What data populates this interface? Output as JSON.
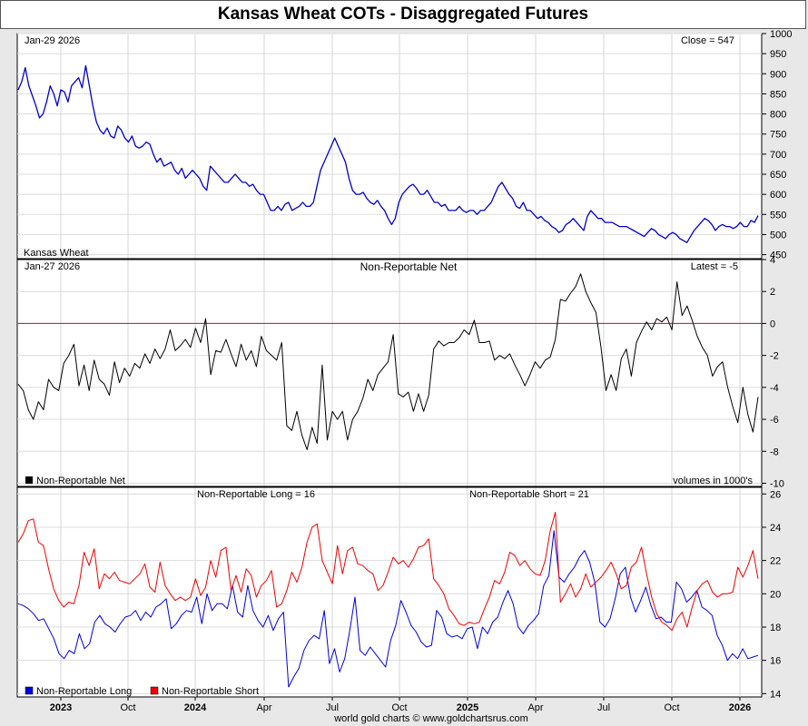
{
  "title": "Kansas Wheat COTs - Disaggregated Futures",
  "footer": "world gold charts © www.goldchartsrus.com",
  "colors": {
    "price": "#0000cc",
    "net": "#000000",
    "zero": "#cc0066",
    "long": "#0000dd",
    "short": "#ee0000"
  },
  "x_axis": {
    "labels": [
      "2023",
      "Oct",
      "2024",
      "Apr",
      "Jul",
      "Oct",
      "2025",
      "Apr",
      "Jul",
      "Oct",
      "2026"
    ],
    "bold": [
      true,
      false,
      true,
      false,
      false,
      false,
      true,
      false,
      false,
      false,
      true
    ]
  },
  "chart_data": [
    {
      "type": "line",
      "panel": "price",
      "date_label": "Jan-29  2026",
      "readout": "Close = 547",
      "series_label": "Kansas Wheat",
      "ylim": [
        440,
        1000
      ],
      "yticks": [
        1000,
        950,
        900,
        850,
        800,
        750,
        700,
        650,
        600,
        550,
        500,
        450
      ],
      "series": [
        {
          "name": "Kansas Wheat",
          "values": [
            860,
            880,
            915,
            870,
            845,
            820,
            790,
            800,
            830,
            870,
            850,
            820,
            860,
            855,
            830,
            870,
            880,
            890,
            865,
            920,
            870,
            820,
            780,
            760,
            750,
            765,
            745,
            740,
            770,
            760,
            740,
            730,
            745,
            720,
            715,
            720,
            730,
            725,
            700,
            680,
            690,
            670,
            675,
            680,
            660,
            650,
            665,
            640,
            650,
            660,
            650,
            640,
            620,
            610,
            670,
            660,
            650,
            640,
            630,
            630,
            640,
            650,
            640,
            630,
            630,
            620,
            625,
            610,
            600,
            600,
            580,
            560,
            560,
            570,
            560,
            575,
            580,
            560,
            565,
            570,
            580,
            570,
            570,
            580,
            620,
            660,
            680,
            700,
            720,
            740,
            720,
            700,
            680,
            640,
            610,
            600,
            600,
            605,
            590,
            580,
            575,
            585,
            570,
            560,
            540,
            525,
            540,
            580,
            600,
            610,
            620,
            625,
            615,
            600,
            600,
            610,
            595,
            580,
            580,
            570,
            575,
            560,
            560,
            560,
            570,
            560,
            555,
            560,
            560,
            550,
            560,
            560,
            570,
            580,
            600,
            620,
            630,
            615,
            600,
            590,
            570,
            565,
            580,
            560,
            560,
            550,
            540,
            545,
            535,
            530,
            520,
            515,
            505,
            510,
            525,
            530,
            540,
            530,
            520,
            510,
            545,
            560,
            550,
            540,
            540,
            530,
            530,
            530,
            525,
            520,
            520,
            520,
            515,
            510,
            505,
            500,
            495,
            505,
            515,
            510,
            500,
            495,
            490,
            500,
            505,
            500,
            490,
            485,
            480,
            495,
            510,
            520,
            530,
            540,
            535,
            525,
            510,
            520,
            525,
            520,
            520,
            515,
            520,
            530,
            520,
            520,
            535,
            530,
            547
          ]
        }
      ]
    },
    {
      "type": "line",
      "panel": "net",
      "title": "Non-Reportable Net",
      "date_label": "Jan-27  2026",
      "readout": "Latest = -5",
      "legend": "Non-Reportable Net",
      "note": "volumes in 1000's",
      "ylim": [
        -10.2,
        4
      ],
      "yticks": [
        4,
        2,
        0,
        -2,
        -4,
        -6,
        -8,
        -10
      ],
      "series": [
        {
          "name": "Non-Reportable Net",
          "values": [
            -3.8,
            -4.2,
            -5.4,
            -6.0,
            -4.9,
            -5.4,
            -3.5,
            -4.0,
            -4.2,
            -2.5,
            -2.0,
            -1.3,
            -3.9,
            -2.6,
            -4.2,
            -2.3,
            -3.5,
            -3.8,
            -4.5,
            -2.4,
            -3.7,
            -2.8,
            -3.3,
            -2.5,
            -2.8,
            -1.9,
            -2.5,
            -1.6,
            -2.2,
            -1.6,
            -0.4,
            -1.7,
            -1.4,
            -1.0,
            -1.5,
            -0.3,
            -1.2,
            0.3,
            -3.2,
            -1.7,
            -1.8,
            -1.0,
            -1.9,
            -2.7,
            -1.3,
            -2.3,
            -1.7,
            -2.7,
            -0.8,
            -1.7,
            -2.0,
            -2.3,
            -1.2,
            -6.4,
            -6.7,
            -5.5,
            -7.0,
            -7.9,
            -6.5,
            -7.5,
            -2.6,
            -7.3,
            -5.5,
            -6.0,
            -5.5,
            -7.3,
            -6.0,
            -5.5,
            -4.7,
            -3.5,
            -4.2,
            -3.2,
            -2.8,
            -2.4,
            -0.7,
            -4.4,
            -4.6,
            -4.3,
            -5.5,
            -4.4,
            -5.5,
            -4.5,
            -1.6,
            -1.1,
            -1.4,
            -1.2,
            -1.2,
            -0.9,
            -0.4,
            -0.7,
            0.2,
            -1.2,
            -1.2,
            -1.1,
            -2.3,
            -2.0,
            -2.2,
            -1.9,
            -2.6,
            -3.2,
            -3.9,
            -3.2,
            -2.4,
            -2.8,
            -2.3,
            -2.1,
            -1.0,
            1.5,
            1.4,
            1.9,
            2.3,
            3.1,
            2.0,
            1.3,
            0.7,
            -1.5,
            -4.2,
            -3.2,
            -4.2,
            -2.2,
            -1.6,
            -3.3,
            -1.2,
            -0.5,
            0.1,
            -0.4,
            0.3,
            0.1,
            0.4,
            -0.4,
            2.6,
            0.5,
            1.1,
            0.2,
            -0.8,
            -1.5,
            -2.0,
            -3.3,
            -2.7,
            -2.4,
            -4.0,
            -5.2,
            -6.2,
            -4.0,
            -5.7,
            -6.8,
            -4.6
          ]
        }
      ]
    },
    {
      "type": "line",
      "panel": "long_short",
      "long_readout": "Non-Reportable Long = 16",
      "short_readout": "Non-Reportable Short = 21",
      "ylim": [
        13.8,
        26.4
      ],
      "yticks": [
        26,
        24,
        22,
        20,
        18,
        16,
        14
      ],
      "series": [
        {
          "name": "Non-Reportable Long",
          "values": [
            19.4,
            19.3,
            19.1,
            18.8,
            18.4,
            18.5,
            17.9,
            17.3,
            16.4,
            16.1,
            16.6,
            16.4,
            17.6,
            16.7,
            17.0,
            18.3,
            18.7,
            18.2,
            18.0,
            17.7,
            18.2,
            18.6,
            18.7,
            19.0,
            18.4,
            18.9,
            18.6,
            19.2,
            19.4,
            19.7,
            17.9,
            18.2,
            18.7,
            19.0,
            18.9,
            19.8,
            18.2,
            20.0,
            19.0,
            19.4,
            19.4,
            19.1,
            20.5,
            18.9,
            18.6,
            20.5,
            19.0,
            18.4,
            18.0,
            18.7,
            17.8,
            18.5,
            18.9,
            14.4,
            15.0,
            15.5,
            16.6,
            17.2,
            17.5,
            17.3,
            19.0,
            15.8,
            16.7,
            15.3,
            16.1,
            17.8,
            19.8,
            16.6,
            16.3,
            16.8,
            16.4,
            16.0,
            15.6,
            17.2,
            18.1,
            19.6,
            18.9,
            18.1,
            17.7,
            17.1,
            16.8,
            16.9,
            19.0,
            18.6,
            17.6,
            17.4,
            17.5,
            17.3,
            17.9,
            18.0,
            16.7,
            18.0,
            17.6,
            18.3,
            18.6,
            19.5,
            20.2,
            19.4,
            18.0,
            17.6,
            18.1,
            18.4,
            18.8,
            20.5,
            21.1,
            23.8,
            21.0,
            20.7,
            21.2,
            21.6,
            22.2,
            22.6,
            21.9,
            20.7,
            18.3,
            18.0,
            18.5,
            19.7,
            21.2,
            21.6,
            19.8,
            18.9,
            19.6,
            20.4,
            19.3,
            18.5,
            18.6,
            18.3,
            18.3,
            20.7,
            20.3,
            19.5,
            19.8,
            20.2,
            19.2,
            19.0,
            18.7,
            17.5,
            16.9,
            16.0,
            16.4,
            16.1,
            16.7,
            16.1,
            16.2,
            16.3
          ]
        },
        {
          "name": "Non-Reportable Short",
          "values": [
            23.1,
            23.6,
            24.4,
            24.5,
            23.1,
            22.9,
            21.5,
            20.3,
            19.6,
            19.2,
            19.5,
            19.4,
            20.5,
            22.5,
            21.7,
            22.7,
            20.3,
            21.2,
            20.9,
            21.3,
            20.8,
            20.7,
            20.6,
            20.9,
            21.2,
            21.8,
            20.4,
            20.1,
            21.9,
            20.5,
            20.0,
            19.6,
            19.8,
            19.6,
            19.8,
            20.9,
            19.9,
            20.4,
            22.0,
            21.0,
            22.6,
            22.8,
            20.2,
            21.1,
            20.1,
            21.5,
            21.1,
            19.8,
            20.5,
            20.8,
            21.4,
            19.2,
            19.4,
            20.2,
            21.3,
            20.7,
            21.6,
            23.1,
            24.0,
            24.2,
            22.0,
            21.3,
            20.6,
            22.9,
            21.2,
            22.6,
            22.8,
            21.8,
            21.7,
            21.4,
            21.2,
            20.2,
            20.5,
            21.3,
            22.2,
            21.8,
            22.0,
            21.6,
            22.1,
            22.8,
            22.9,
            23.3,
            20.9,
            20.5,
            20.0,
            19.1,
            18.7,
            18.2,
            18.1,
            18.3,
            18.2,
            18.3,
            19.1,
            19.8,
            20.8,
            20.6,
            21.3,
            22.5,
            22.3,
            21.7,
            22.0,
            21.5,
            21.2,
            21.1,
            22.0,
            23.8,
            24.9,
            19.5,
            20.0,
            20.6,
            19.8,
            20.3,
            21.2,
            20.4,
            20.7,
            21.0,
            21.4,
            21.9,
            21.2,
            20.3,
            20.5,
            21.6,
            21.9,
            22.8,
            21.2,
            19.8,
            18.8,
            18.3,
            18.1,
            17.8,
            18.5,
            18.9,
            18.0,
            19.2,
            20.2,
            20.6,
            20.8,
            20.1,
            19.8,
            20.0,
            20.0,
            20.1,
            21.6,
            21.0,
            21.7,
            22.6,
            20.9
          ]
        }
      ]
    }
  ]
}
